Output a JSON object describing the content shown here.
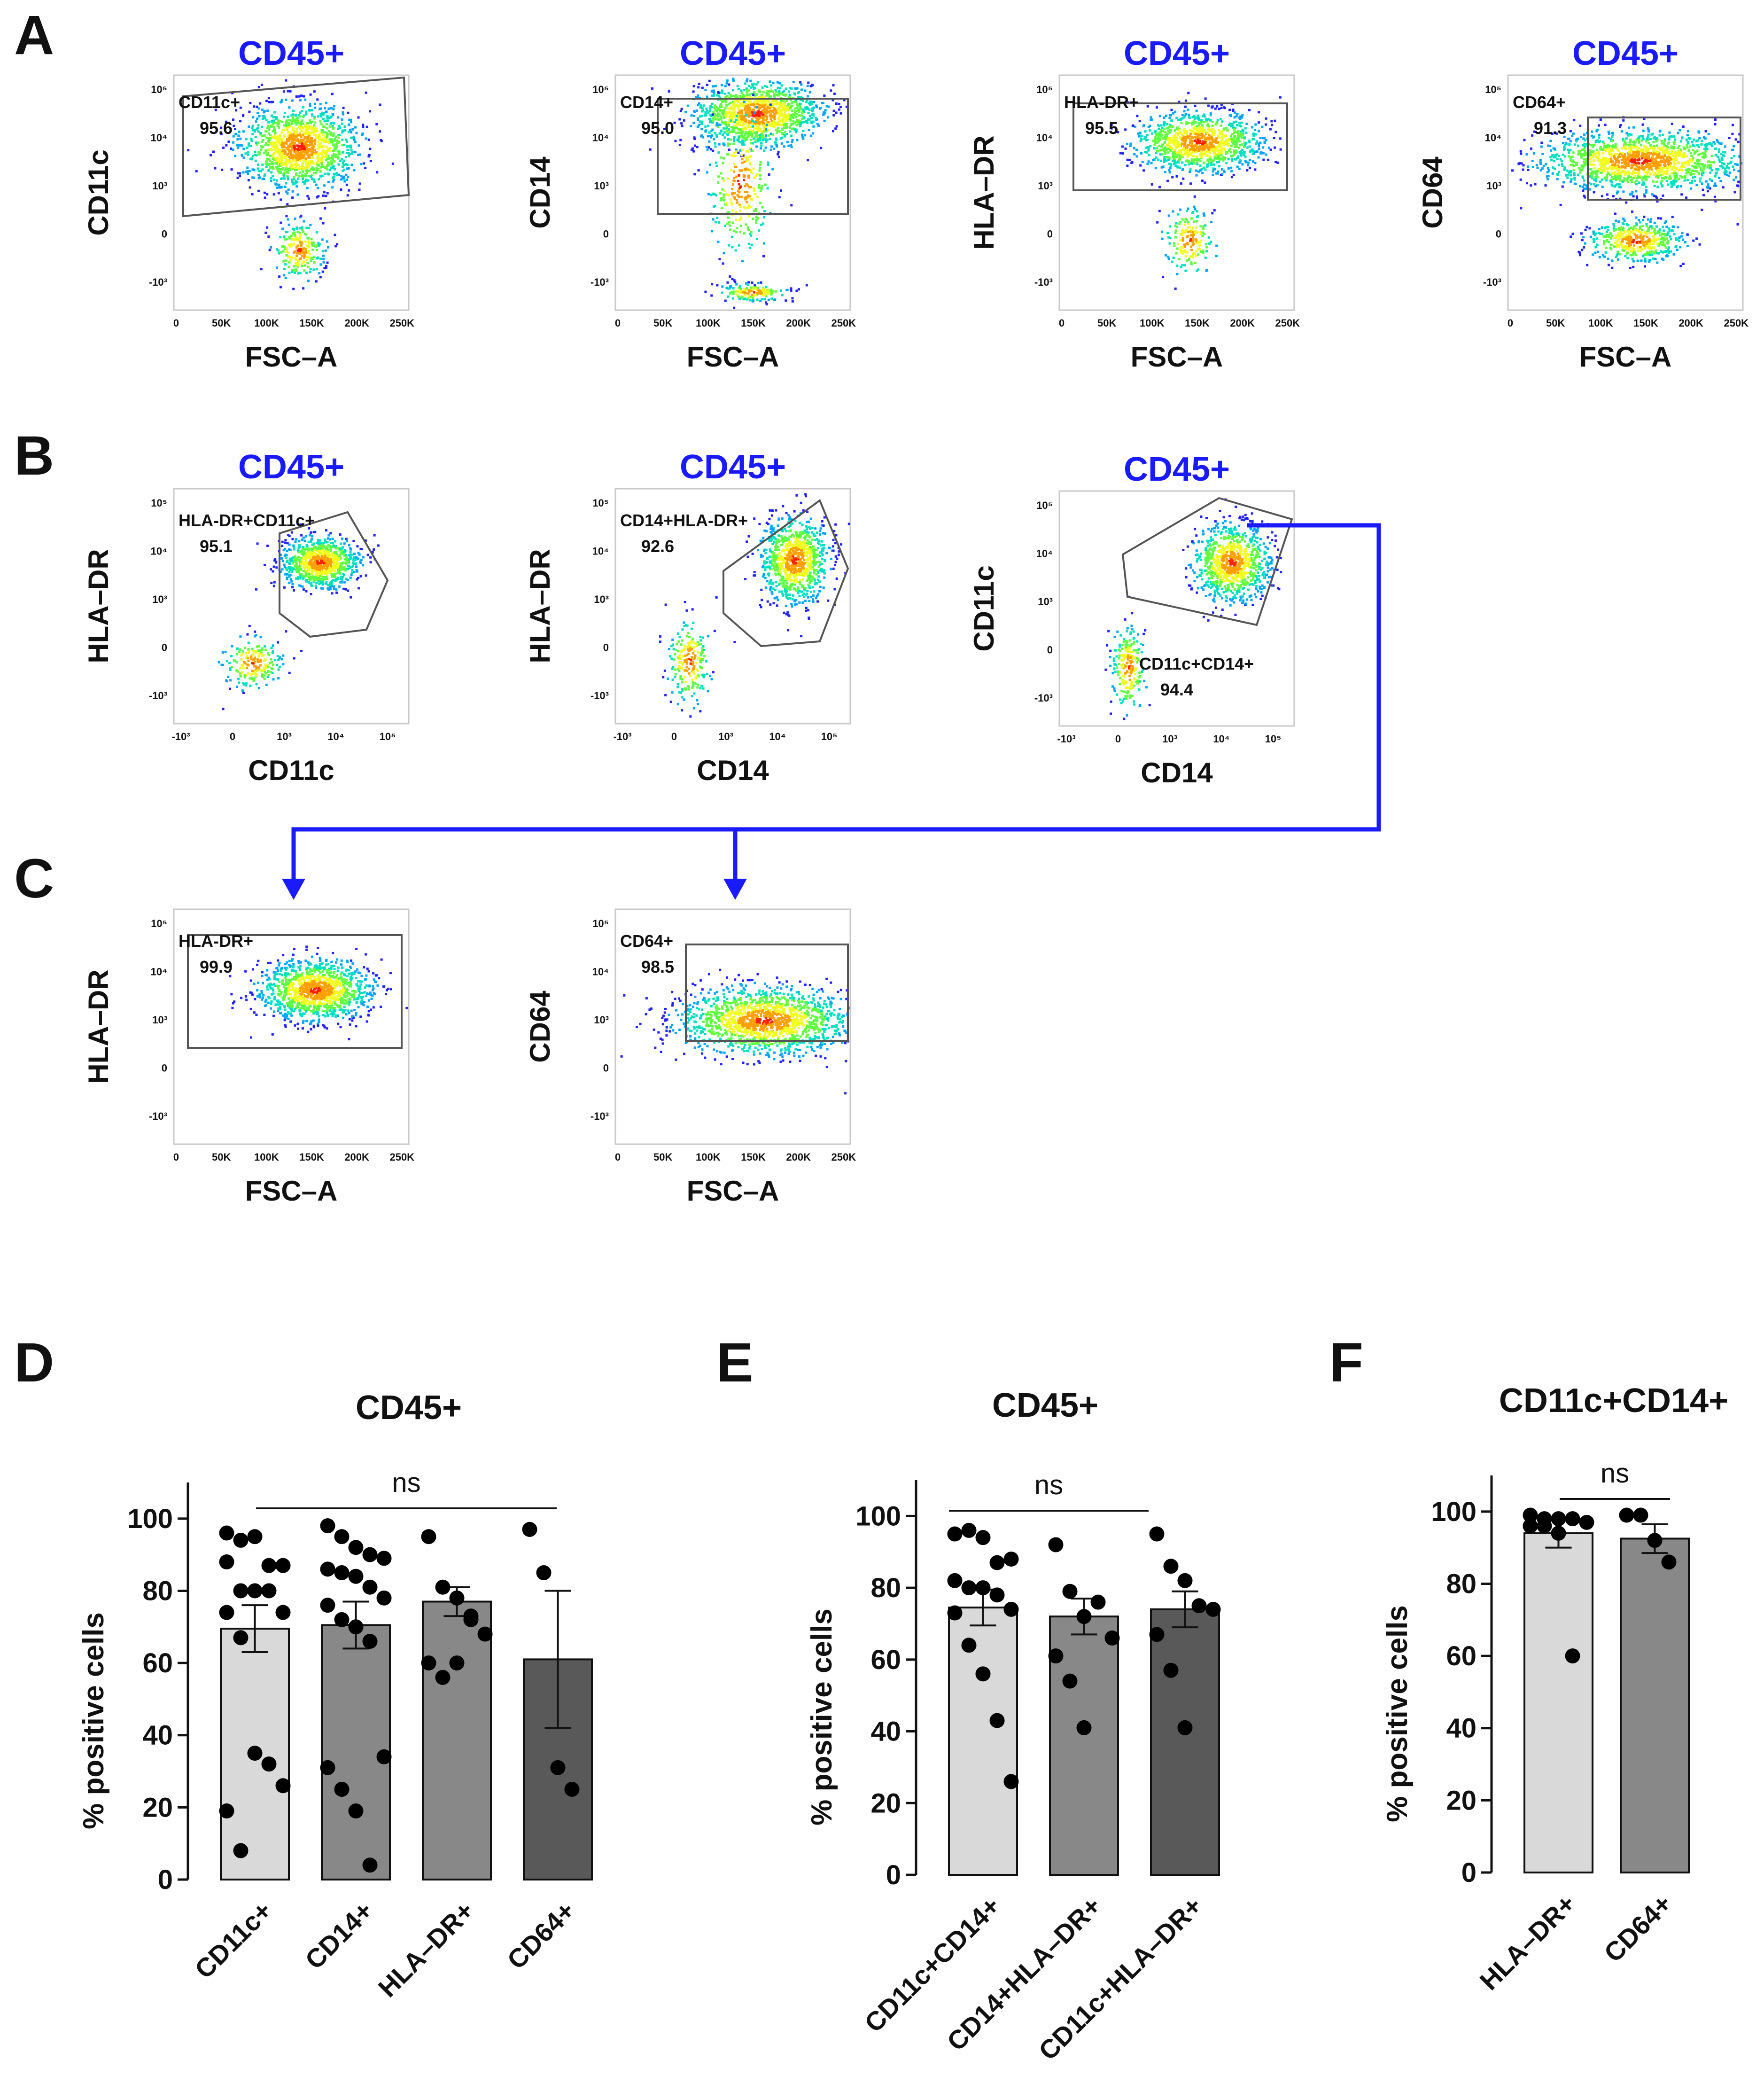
{
  "colors": {
    "population_title": "#1a1aff",
    "arrow": "#1a1aff",
    "gate": "#555555",
    "text": "#111111",
    "bar_light": "#d9d9d9",
    "bar_mid": "#888888",
    "bar_dark": "#595959",
    "dot": "#000000"
  },
  "panel_labels": [
    "A",
    "B",
    "C",
    "D",
    "E",
    "F"
  ],
  "tick_labels": {
    "fsc": [
      "0",
      "50K",
      "100K",
      "150K",
      "200K",
      "250K"
    ],
    "log_y": [
      "10⁵",
      "10⁴",
      "10³",
      "0",
      "-10³"
    ],
    "log_y_small": [
      "10³",
      "10²",
      "0",
      "-10²"
    ],
    "log_x": [
      "-10³",
      "0",
      "10³",
      "10⁴",
      "10⁵"
    ]
  },
  "flow_plots": [
    {
      "panel": "A",
      "title": "CD45+",
      "xlabel": "FSC–A",
      "ylabel": "CD11c",
      "gate_label": "CD11c+",
      "gate_value": "95.6"
    },
    {
      "panel": "A",
      "title": "CD45+",
      "xlabel": "FSC–A",
      "ylabel": "CD14",
      "gate_label": "CD14+",
      "gate_value": "95.0"
    },
    {
      "panel": "A",
      "title": "CD45+",
      "xlabel": "FSC–A",
      "ylabel": "HLA–DR",
      "gate_label": "HLA-DR+",
      "gate_value": "95.5"
    },
    {
      "panel": "A",
      "title": "CD45+",
      "xlabel": "FSC–A",
      "ylabel": "CD64",
      "gate_label": "CD64+",
      "gate_value": "91.3"
    },
    {
      "panel": "B",
      "title": "CD45+",
      "xlabel": "CD11c",
      "ylabel": "HLA–DR",
      "gate_label": "HLA-DR+CD11c+",
      "gate_value": "95.1"
    },
    {
      "panel": "B",
      "title": "CD45+",
      "xlabel": "CD14",
      "ylabel": "HLA–DR",
      "gate_label": "CD14+HLA-DR+",
      "gate_value": "92.6"
    },
    {
      "panel": "B",
      "title": "CD45+",
      "xlabel": "CD14",
      "ylabel": "CD11c",
      "gate_label": "CD11c+CD14+",
      "gate_value": "94.4"
    },
    {
      "panel": "C",
      "title": "",
      "xlabel": "FSC–A",
      "ylabel": "HLA–DR",
      "gate_label": "HLA-DR+",
      "gate_value": "99.9"
    },
    {
      "panel": "C",
      "title": "",
      "xlabel": "FSC–A",
      "ylabel": "CD64",
      "gate_label": "CD64+",
      "gate_value": "98.5"
    }
  ],
  "chart_data": [
    {
      "panel": "D",
      "type": "bar",
      "title": "CD45+",
      "ylabel": "% positive cells",
      "ylim": [
        0,
        100
      ],
      "yticks": [
        0,
        20,
        40,
        60,
        80,
        100
      ],
      "significance": "ns",
      "categories": [
        "CD11c+",
        "CD14+",
        "HLA–DR+",
        "CD64+"
      ],
      "values": [
        69.5,
        70.5,
        77,
        61
      ],
      "sem": [
        6.5,
        6.5,
        4,
        19
      ],
      "points": [
        [
          96,
          94,
          95,
          87,
          87,
          88,
          80,
          80,
          80,
          74,
          74,
          67,
          35,
          32,
          26,
          19,
          8
        ],
        [
          98,
          95,
          92,
          90,
          89,
          86,
          85,
          84,
          81,
          78,
          76,
          72,
          70,
          66,
          34,
          31,
          25,
          19,
          4
        ],
        [
          95,
          81,
          78,
          72,
          68,
          60,
          56,
          60,
          73
        ],
        [
          97,
          85,
          31,
          25
        ]
      ]
    },
    {
      "panel": "E",
      "type": "bar",
      "title": "CD45+",
      "ylabel": "% positive cells",
      "ylim": [
        0,
        100
      ],
      "yticks": [
        0,
        20,
        40,
        60,
        80,
        100
      ],
      "significance": "ns",
      "categories": [
        "CD11c+CD14+",
        "CD14+HLA–DR+",
        "CD11c+HLA–DR+"
      ],
      "values": [
        74.5,
        72,
        74
      ],
      "sem": [
        5,
        5,
        5
      ],
      "points": [
        [
          95,
          96,
          94,
          87,
          88,
          82,
          80,
          80,
          78,
          74,
          73,
          64,
          56,
          43,
          26
        ],
        [
          92,
          79,
          72,
          76,
          66,
          61,
          54,
          41
        ],
        [
          95,
          86,
          82,
          75,
          74,
          67,
          57,
          41
        ]
      ]
    },
    {
      "panel": "F",
      "type": "bar",
      "title": "CD11c+CD14+",
      "ylabel": "% positive cells",
      "ylim": [
        0,
        100
      ],
      "yticks": [
        0,
        20,
        40,
        60,
        80,
        100
      ],
      "significance": "ns",
      "categories": [
        "HLA–DR+",
        "CD64+"
      ],
      "values": [
        94,
        92.5
      ],
      "sem": [
        4,
        4
      ],
      "points": [
        [
          99,
          98,
          98,
          98,
          97,
          96,
          96,
          94,
          60
        ],
        [
          99,
          99,
          92,
          86
        ]
      ]
    }
  ]
}
